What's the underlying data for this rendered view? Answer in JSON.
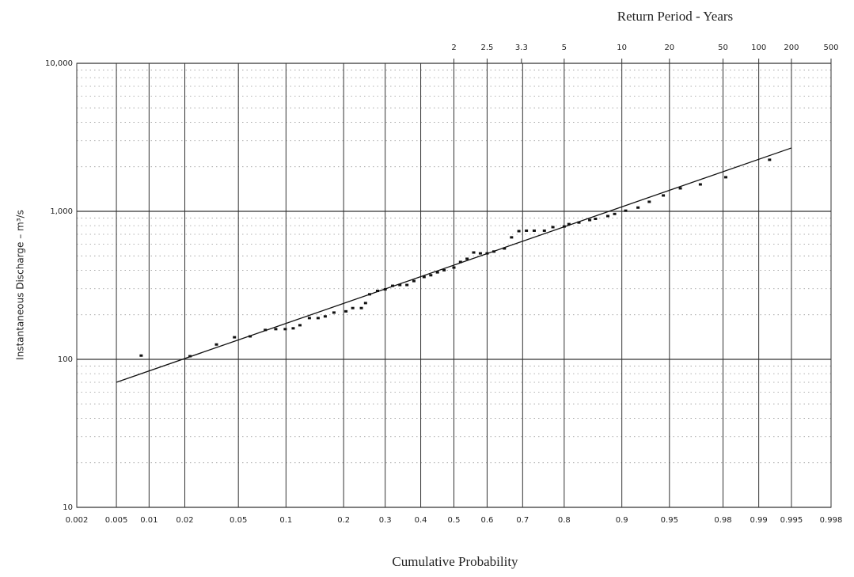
{
  "chart_data": {
    "type": "probability",
    "title": "Return Period - Years",
    "xlabel": "Cumulative Probability",
    "ylabel": "Instantaneous Discharge – m³/s",
    "x_scale": "normal",
    "y_scale": "log",
    "grid": true,
    "xlim": [
      0.002,
      0.998
    ],
    "xticks": [
      0.002,
      0.005,
      0.01,
      0.02,
      0.05,
      0.1,
      0.2,
      0.3,
      0.4,
      0.5,
      0.6,
      0.7,
      0.8,
      0.9,
      0.95,
      0.98,
      0.99,
      0.995,
      0.998
    ],
    "x2ticks": [
      2,
      2.5,
      3.3,
      5,
      10,
      20,
      50,
      100,
      200,
      500
    ],
    "ylim": [
      10,
      10000
    ],
    "yticks": [
      {
        "value": 10000,
        "label": "10,000"
      },
      {
        "value": 1000,
        "label": "1,000"
      },
      100,
      10
    ],
    "series": [
      {
        "type": "scatter",
        "color": "#111",
        "x": [
          0.0085,
          0.022,
          0.035,
          0.047,
          0.06,
          0.075,
          0.087,
          0.099,
          0.11,
          0.12,
          0.135,
          0.15,
          0.163,
          0.18,
          0.205,
          0.22,
          0.24,
          0.25,
          0.26,
          0.28,
          0.3,
          0.32,
          0.34,
          0.36,
          0.38,
          0.41,
          0.43,
          0.45,
          0.47,
          0.5,
          0.52,
          0.54,
          0.56,
          0.58,
          0.6,
          0.62,
          0.65,
          0.67,
          0.69,
          0.71,
          0.73,
          0.755,
          0.775,
          0.8,
          0.81,
          0.83,
          0.85,
          0.86,
          0.88,
          0.89,
          0.905,
          0.92,
          0.932,
          0.945,
          0.958,
          0.97,
          0.981,
          0.992
        ],
        "values": [
          106,
          105,
          126,
          141,
          143,
          158,
          160,
          160,
          162,
          170,
          190,
          190,
          195,
          207,
          211,
          222,
          222,
          240,
          275,
          290,
          297,
          314,
          318,
          318,
          338,
          360,
          370,
          387,
          400,
          417,
          455,
          478,
          527,
          520,
          520,
          535,
          561,
          667,
          735,
          740,
          740,
          740,
          782,
          790,
          820,
          840,
          873,
          890,
          929,
          960,
          1010,
          1060,
          1160,
          1280,
          1430,
          1520,
          1700,
          2230
        ]
      },
      {
        "type": "line",
        "color": "#111",
        "x": [
          0.005,
          0.995
        ],
        "values": [
          70,
          2680
        ]
      }
    ]
  }
}
